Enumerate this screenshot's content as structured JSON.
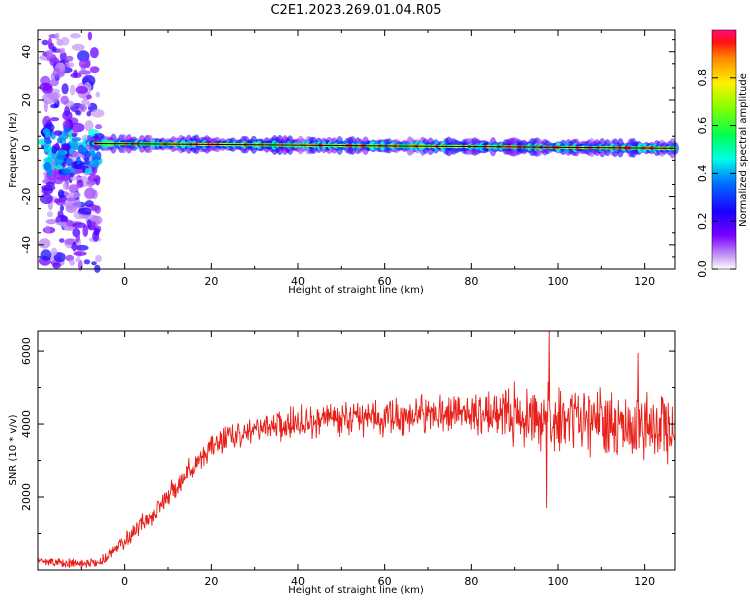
{
  "title": "C2E1.2023.269.01.04.R05",
  "colors": {
    "snr_line": "#e8201a",
    "axis": "#000000",
    "spectrogram_colormap": "gist_rainbow_r",
    "spectrogram_background": "#ffffff"
  },
  "chart_data": [
    {
      "type": "heatmap",
      "name": "spectrogram",
      "xlabel": "Height of straight line (km)",
      "ylabel": "Frequency (Hz)",
      "xlim": [
        -20,
        127
      ],
      "ylim": [
        -50,
        49
      ],
      "xticks": [
        0,
        20,
        40,
        60,
        80,
        100,
        120
      ],
      "yticks": [
        -40,
        -20,
        0,
        20,
        40
      ],
      "xtick_labels": [
        "0",
        "20",
        "40",
        "60",
        "80",
        "100",
        "120"
      ],
      "ytick_labels": [
        "-40",
        "-20",
        "0",
        "20",
        "40"
      ],
      "carrier_line": {
        "x_start": -7,
        "x_end": 127,
        "frequency_start": 2,
        "frequency_end": 0
      },
      "grid": false,
      "colorbar": {
        "label": "Normalized spectral amplitude",
        "range": [
          0,
          1
        ],
        "ticks": [
          0.0,
          0.2,
          0.4,
          0.6,
          0.8
        ],
        "tick_labels": [
          "0.0",
          "0.2",
          "0.4",
          "0.6",
          "0.8"
        ]
      }
    },
    {
      "type": "line",
      "name": "snr",
      "xlabel": "Height of straight line (km)",
      "ylabel": "SNR (10 * v/v)",
      "xlim": [
        -20,
        127
      ],
      "ylim": [
        0,
        6550
      ],
      "xticks": [
        0,
        20,
        40,
        60,
        80,
        100,
        120
      ],
      "yticks": [
        2000,
        4000,
        6000
      ],
      "xtick_labels": [
        "0",
        "20",
        "40",
        "60",
        "80",
        "100",
        "120"
      ],
      "ytick_labels": [
        "2000",
        "4000",
        "6000"
      ],
      "grid": false,
      "trend": {
        "x": [
          -20,
          -15,
          -10,
          -5,
          0,
          5,
          10,
          15,
          20,
          25,
          30,
          35,
          40,
          50,
          60,
          70,
          80,
          90,
          100,
          110,
          120,
          127
        ],
        "y": [
          250,
          200,
          180,
          280,
          800,
          1400,
          2000,
          2700,
          3400,
          3700,
          3850,
          3950,
          4050,
          4150,
          4200,
          4250,
          4300,
          4250,
          4100,
          4050,
          3950,
          3900
        ]
      },
      "noise_amplitude": {
        "x": [
          -20,
          -5,
          10,
          20,
          40,
          80,
          90,
          127
        ],
        "y": [
          120,
          180,
          450,
          400,
          550,
          600,
          1100,
          1100
        ]
      },
      "peaks": [
        {
          "x": 98.0,
          "y": 6550
        },
        {
          "x": 97.4,
          "y": 1700
        },
        {
          "x": 118.5,
          "y": 5950
        }
      ]
    }
  ]
}
